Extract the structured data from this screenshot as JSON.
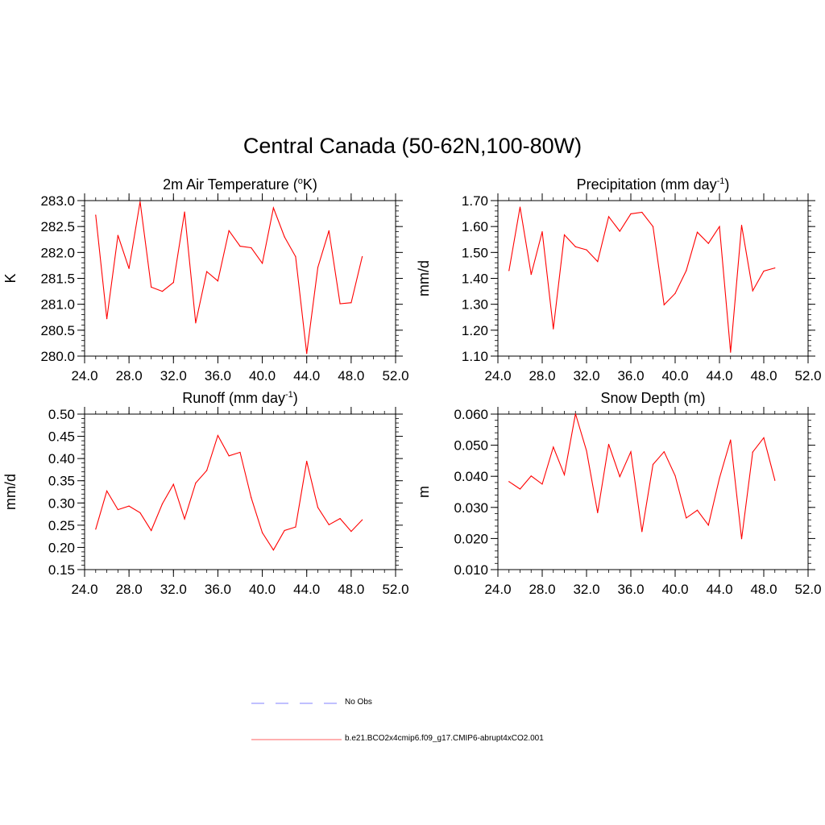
{
  "title": "Central Canada (50-62N,100-80W)",
  "colors": {
    "model": "#ff0000",
    "obs": "#9a9aff",
    "axis": "#000000"
  },
  "legend": [
    {
      "label": "No Obs",
      "style": "dashed",
      "color": "#9a9aff"
    },
    {
      "label": "b.e21.BCO2x4cmip6.f09_g17.CMIP6-abrupt4xCO2.001",
      "style": "solid",
      "color": "#ff0000"
    }
  ],
  "chart_data": [
    {
      "type": "line",
      "title": "2m Air Temperature (",
      "title_sup": "o",
      "title_after": "K)",
      "ylabel": "K",
      "xlim": [
        24,
        52
      ],
      "ylim": [
        280.0,
        283.0
      ],
      "xticks": [
        "24.0",
        "28.0",
        "32.0",
        "36.0",
        "40.0",
        "44.0",
        "48.0",
        "52.0"
      ],
      "yticks": [
        "280.0",
        "280.5",
        "281.0",
        "281.5",
        "282.0",
        "282.5",
        "283.0"
      ],
      "series": [
        {
          "name": "b.e21.BCO2x4cmip6.f09_g17.CMIP6-abrupt4xCO2.001",
          "x": [
            25,
            26,
            27,
            28,
            29,
            30,
            31,
            32,
            33,
            34,
            35,
            36,
            37,
            38,
            39,
            40,
            41,
            42,
            43,
            44,
            45,
            46,
            47,
            48,
            49
          ],
          "values": [
            282.72,
            280.72,
            282.33,
            281.69,
            282.98,
            281.33,
            281.25,
            281.42,
            282.78,
            280.64,
            281.63,
            281.45,
            282.42,
            282.12,
            282.09,
            281.79,
            282.86,
            282.3,
            281.92,
            280.05,
            281.71,
            282.42,
            281.01,
            281.03,
            281.92
          ]
        }
      ]
    },
    {
      "type": "line",
      "title": "Precipitation (mm day",
      "title_sup": "-1",
      "title_after": ")",
      "ylabel": "mm/d",
      "xlim": [
        24,
        52
      ],
      "ylim": [
        1.1,
        1.7
      ],
      "xticks": [
        "24.0",
        "28.0",
        "32.0",
        "36.0",
        "40.0",
        "44.0",
        "48.0",
        "52.0"
      ],
      "yticks": [
        "1.10",
        "1.20",
        "1.30",
        "1.40",
        "1.50",
        "1.60",
        "1.70"
      ],
      "series": [
        {
          "name": "b.e21.BCO2x4cmip6.f09_g17.CMIP6-abrupt4xCO2.001",
          "x": [
            25,
            26,
            27,
            28,
            29,
            30,
            31,
            32,
            33,
            34,
            35,
            36,
            37,
            38,
            39,
            40,
            41,
            42,
            43,
            44,
            45,
            46,
            47,
            48,
            49
          ],
          "values": [
            1.43,
            1.675,
            1.415,
            1.58,
            1.205,
            1.568,
            1.522,
            1.51,
            1.465,
            1.638,
            1.582,
            1.649,
            1.655,
            1.6,
            1.298,
            1.342,
            1.43,
            1.578,
            1.535,
            1.6,
            1.115,
            1.605,
            1.352,
            1.428,
            1.44
          ]
        }
      ]
    },
    {
      "type": "line",
      "title": "Runoff (mm day",
      "title_sup": "-1",
      "title_after": ")",
      "ylabel": "mm/d",
      "xlim": [
        24,
        52
      ],
      "ylim": [
        0.15,
        0.5
      ],
      "xticks": [
        "24.0",
        "28.0",
        "32.0",
        "36.0",
        "40.0",
        "44.0",
        "48.0",
        "52.0"
      ],
      "yticks": [
        "0.15",
        "0.20",
        "0.25",
        "0.30",
        "0.35",
        "0.40",
        "0.45",
        "0.50"
      ],
      "series": [
        {
          "name": "b.e21.BCO2x4cmip6.f09_g17.CMIP6-abrupt4xCO2.001",
          "x": [
            25,
            26,
            27,
            28,
            29,
            30,
            31,
            32,
            33,
            34,
            35,
            36,
            37,
            38,
            39,
            40,
            41,
            42,
            43,
            44,
            45,
            46,
            47,
            48,
            49
          ],
          "values": [
            0.241,
            0.327,
            0.285,
            0.293,
            0.278,
            0.238,
            0.298,
            0.342,
            0.264,
            0.345,
            0.373,
            0.452,
            0.406,
            0.414,
            0.312,
            0.233,
            0.194,
            0.238,
            0.246,
            0.394,
            0.29,
            0.251,
            0.265,
            0.236,
            0.262
          ]
        }
      ]
    },
    {
      "type": "line",
      "title": "Snow Depth (m)",
      "title_sup": "",
      "title_after": "",
      "ylabel": "m",
      "xlim": [
        24,
        52
      ],
      "ylim": [
        0.01,
        0.06
      ],
      "xticks": [
        "24.0",
        "28.0",
        "32.0",
        "36.0",
        "40.0",
        "44.0",
        "48.0",
        "52.0"
      ],
      "yticks": [
        "0.010",
        "0.020",
        "0.030",
        "0.040",
        "0.050",
        "0.060"
      ],
      "series": [
        {
          "name": "b.e21.BCO2x4cmip6.f09_g17.CMIP6-abrupt4xCO2.001",
          "x": [
            25,
            26,
            27,
            28,
            29,
            30,
            31,
            32,
            33,
            34,
            35,
            36,
            37,
            38,
            39,
            40,
            41,
            42,
            43,
            44,
            45,
            46,
            47,
            48,
            49
          ],
          "values": [
            0.0383,
            0.0359,
            0.0401,
            0.0375,
            0.0494,
            0.0405,
            0.0601,
            0.0482,
            0.0283,
            0.0503,
            0.0399,
            0.0479,
            0.0222,
            0.0438,
            0.0479,
            0.0402,
            0.0266,
            0.0291,
            0.0243,
            0.0394,
            0.0517,
            0.0199,
            0.0478,
            0.0524,
            0.0387
          ]
        }
      ]
    }
  ]
}
